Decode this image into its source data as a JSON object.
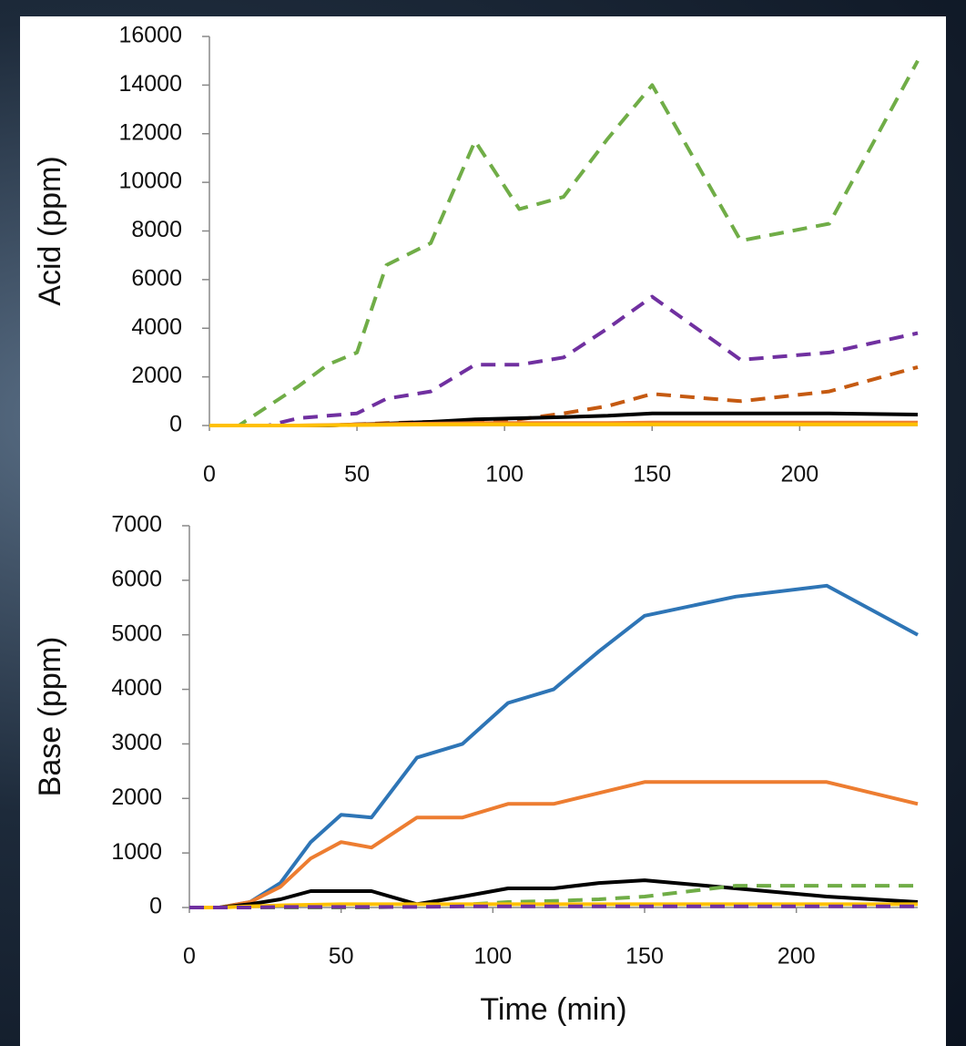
{
  "chart_data": [
    {
      "type": "line",
      "ylabel": "Acid (ppm)",
      "x": [
        0,
        10,
        20,
        30,
        40,
        50,
        60,
        75,
        90,
        105,
        120,
        135,
        150,
        180,
        210,
        240
      ],
      "xlim": [
        0,
        240
      ],
      "xticks": [
        0,
        50,
        100,
        150,
        200
      ],
      "ylim": [
        0,
        16000
      ],
      "yticks": [
        0,
        2000,
        4000,
        6000,
        8000,
        10000,
        12000,
        14000,
        16000
      ],
      "series": [
        {
          "color": "#70ad47",
          "linestyle": "dashed",
          "values": [
            0,
            0,
            800,
            1600,
            2500,
            3000,
            6600,
            7500,
            11700,
            8900,
            9400,
            11800,
            14000,
            7600,
            8300,
            15000
          ]
        },
        {
          "color": "#7030a0",
          "linestyle": "dashed",
          "values": [
            0,
            0,
            0,
            300,
            400,
            500,
            1100,
            1400,
            2500,
            2500,
            2800,
            4000,
            5300,
            2700,
            3000,
            3800
          ]
        },
        {
          "color": "#c55a11",
          "linestyle": "dashed",
          "values": [
            0,
            0,
            0,
            0,
            0,
            50,
            100,
            150,
            200,
            250,
            500,
            800,
            1300,
            1000,
            1400,
            2400
          ]
        },
        {
          "color": "#000000",
          "linestyle": "solid",
          "values": [
            0,
            0,
            0,
            0,
            0,
            50,
            80,
            150,
            250,
            300,
            350,
            400,
            500,
            500,
            500,
            450
          ]
        },
        {
          "color": "#ed7d31",
          "linestyle": "solid",
          "values": [
            0,
            0,
            0,
            0,
            20,
            40,
            60,
            80,
            100,
            100,
            100,
            100,
            120,
            120,
            120,
            120
          ]
        },
        {
          "color": "#ffc000",
          "linestyle": "solid",
          "values": [
            0,
            0,
            0,
            0,
            10,
            20,
            30,
            40,
            50,
            50,
            50,
            50,
            50,
            50,
            50,
            50
          ]
        }
      ]
    },
    {
      "type": "line",
      "ylabel": "Base (ppm)",
      "xlabel": "Time (min)",
      "x": [
        0,
        10,
        20,
        30,
        40,
        50,
        60,
        75,
        90,
        105,
        120,
        135,
        150,
        180,
        210,
        240
      ],
      "xlim": [
        0,
        240
      ],
      "xticks": [
        0,
        50,
        100,
        150,
        200
      ],
      "ylim": [
        0,
        7000
      ],
      "yticks": [
        0,
        1000,
        2000,
        3000,
        4000,
        5000,
        6000,
        7000
      ],
      "series": [
        {
          "color": "#2e75b6",
          "linestyle": "solid",
          "values": [
            0,
            0,
            100,
            450,
            1200,
            1700,
            1650,
            2750,
            3000,
            3750,
            4000,
            4700,
            5350,
            5700,
            5900,
            5000
          ]
        },
        {
          "color": "#ed7d31",
          "linestyle": "solid",
          "values": [
            0,
            0,
            100,
            380,
            900,
            1200,
            1100,
            1650,
            1650,
            1900,
            1900,
            2100,
            2300,
            2300,
            2300,
            1900
          ]
        },
        {
          "color": "#000000",
          "linestyle": "solid",
          "values": [
            0,
            0,
            60,
            150,
            300,
            300,
            300,
            60,
            200,
            350,
            350,
            450,
            500,
            350,
            200,
            100
          ]
        },
        {
          "color": "#70ad47",
          "linestyle": "dashed",
          "values": [
            0,
            0,
            0,
            0,
            0,
            0,
            0,
            20,
            50,
            100,
            120,
            150,
            200,
            400,
            400,
            400
          ]
        },
        {
          "color": "#ffc000",
          "linestyle": "solid",
          "values": [
            0,
            0,
            20,
            40,
            50,
            60,
            60,
            60,
            60,
            60,
            60,
            60,
            60,
            60,
            60,
            60
          ]
        },
        {
          "color": "#7030a0",
          "linestyle": "dashed",
          "values": [
            0,
            0,
            0,
            10,
            10,
            10,
            10,
            10,
            20,
            20,
            20,
            20,
            20,
            20,
            20,
            20
          ]
        }
      ]
    }
  ]
}
